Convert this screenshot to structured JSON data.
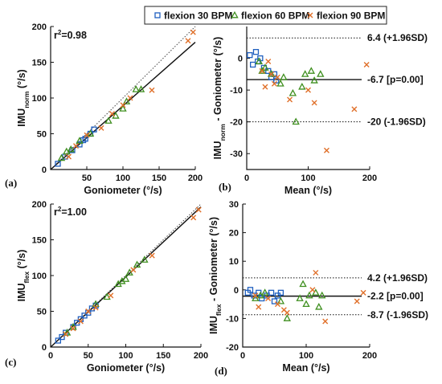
{
  "legend": {
    "items": [
      {
        "label": "flexion 30 BPM",
        "color": "#1f5fbf",
        "marker": "square"
      },
      {
        "label": "flexion 60 BPM",
        "color": "#3f8f1f",
        "marker": "triangle"
      },
      {
        "label": "flexion 90 BPM",
        "color": "#e0702a",
        "marker": "cross"
      }
    ]
  },
  "chart_data": [
    {
      "panel": "(a)",
      "type": "scatter",
      "xlabel": "Goniometer (°/s)",
      "ylabel": "IMU",
      "ylabel_sub": "norm",
      "ylabel_unit": " (°/s)",
      "xlim": [
        0,
        200
      ],
      "ylim": [
        0,
        200
      ],
      "xticks": [
        "50",
        "100",
        "150",
        "200"
      ],
      "yticks": [
        "0",
        "50",
        "100",
        "150",
        "200"
      ],
      "annotation_r2": "r",
      "annotation_r2_sup": "2",
      "annotation_r2_val": "=0.98",
      "identity_line": true,
      "fit_line": {
        "x": [
          0,
          200
        ],
        "y": [
          0,
          178
        ]
      },
      "series": [
        {
          "name": "flexion 30 BPM",
          "x": [
            10,
            20,
            30,
            40,
            45,
            48,
            55,
            60
          ],
          "y": [
            8,
            18,
            27,
            35,
            41,
            43,
            50,
            56
          ]
        },
        {
          "name": "flexion 60 BPM",
          "x": [
            15,
            22,
            28,
            40,
            55,
            80,
            90,
            100,
            105,
            118,
            125
          ],
          "y": [
            16,
            25,
            28,
            40,
            50,
            68,
            75,
            85,
            95,
            112,
            112
          ]
        },
        {
          "name": "flexion 90 BPM",
          "x": [
            25,
            35,
            50,
            70,
            85,
            100,
            110,
            140,
            190,
            197
          ],
          "y": [
            18,
            33,
            48,
            58,
            78,
            90,
            100,
            111,
            180,
            192
          ]
        }
      ]
    },
    {
      "panel": "(b)",
      "type": "scatter",
      "xlabel": "Mean (°/s)",
      "ylabel": "IMU",
      "ylabel_sub": "norm",
      "ylabel_unit": " - Goniometer (°/s)",
      "xlim": [
        0,
        200
      ],
      "ylim": [
        -35,
        10
      ],
      "xticks": [
        "0",
        "100",
        "200"
      ],
      "yticks": [
        "-30",
        "-20",
        "-10",
        "0"
      ],
      "hlines": [
        {
          "y": 6.4,
          "style": "dotted",
          "label": "6.4 (+1.96SD)"
        },
        {
          "y": -6.7,
          "style": "solid",
          "label": "-6.7 [p=0.00]"
        },
        {
          "y": -20,
          "style": "dotted",
          "label": "-20 (-1.96SD)"
        }
      ],
      "series": [
        {
          "name": "flexion 30 BPM",
          "x": [
            5,
            10,
            15,
            18,
            22,
            28,
            35,
            40,
            45,
            48
          ],
          "y": [
            1,
            -2,
            2,
            -1,
            0,
            -3,
            -4,
            -6,
            -5,
            -7
          ]
        },
        {
          "name": "flexion 60 BPM",
          "x": [
            20,
            25,
            30,
            40,
            55,
            60,
            75,
            80,
            90,
            95,
            105,
            110,
            120
          ],
          "y": [
            -1,
            -4,
            -3,
            -5,
            -8,
            -6,
            -11,
            -20,
            -9,
            -5,
            -4,
            -7,
            -5
          ]
        },
        {
          "name": "flexion 90 BPM",
          "x": [
            25,
            30,
            35,
            40,
            45,
            50,
            70,
            100,
            110,
            130,
            175,
            195
          ],
          "y": [
            -4,
            -9,
            -1,
            -5,
            -8,
            -6,
            -13,
            -10,
            -14,
            -29,
            -16,
            -2
          ]
        }
      ]
    },
    {
      "panel": "(c)",
      "type": "scatter",
      "xlabel": "Goniometer (°/s)",
      "ylabel": "IMU",
      "ylabel_sub": "flex",
      "ylabel_unit": " (°/s)",
      "xlim": [
        0,
        200
      ],
      "ylim": [
        0,
        200
      ],
      "xticks": [
        "0",
        "50",
        "100",
        "150",
        "200"
      ],
      "yticks": [
        "0",
        "50",
        "100",
        "150",
        "200"
      ],
      "annotation_r2": "r",
      "annotation_r2_sup": "2",
      "annotation_r2_val": "=1.00",
      "identity_line": true,
      "fit_line": {
        "x": [
          0,
          200
        ],
        "y": [
          0,
          196
        ]
      },
      "series": [
        {
          "name": "flexion 30 BPM",
          "x": [
            10,
            15,
            20,
            30,
            35,
            40,
            45,
            50,
            55,
            60
          ],
          "y": [
            9,
            14,
            20,
            28,
            34,
            39,
            44,
            48,
            54,
            58
          ]
        },
        {
          "name": "flexion 60 BPM",
          "x": [
            22,
            30,
            60,
            75,
            90,
            95,
            100,
            105,
            115,
            125
          ],
          "y": [
            20,
            28,
            60,
            70,
            88,
            92,
            95,
            104,
            115,
            122
          ]
        },
        {
          "name": "flexion 90 BPM",
          "x": [
            20,
            30,
            40,
            50,
            60,
            80,
            110,
            135,
            190,
            197
          ],
          "y": [
            18,
            26,
            36,
            50,
            55,
            72,
            108,
            128,
            181,
            192
          ]
        }
      ]
    },
    {
      "panel": "(d)",
      "type": "scatter",
      "xlabel": "Mean (°/s)",
      "ylabel": "IMU",
      "ylabel_sub": "flex",
      "ylabel_unit": " - Goniometer (°/s)",
      "xlim": [
        0,
        200
      ],
      "ylim": [
        -20,
        30
      ],
      "xticks": [
        "0",
        "100",
        "200"
      ],
      "yticks": [
        "-20",
        "-10",
        "0",
        "10",
        "20",
        "30"
      ],
      "hlines": [
        {
          "y": 4.2,
          "style": "dotted",
          "label": "4.2 (+1.96SD)"
        },
        {
          "y": -2.2,
          "style": "solid",
          "label": "-2.2 [p=0.00]"
        },
        {
          "y": -8.7,
          "style": "dotted",
          "label": "-8.7 (-1.96SD)"
        }
      ],
      "series": [
        {
          "name": "flexion 30 BPM",
          "x": [
            8,
            12,
            18,
            25,
            30,
            38,
            45,
            50,
            55,
            60
          ],
          "y": [
            -1,
            0,
            -2,
            -1,
            -3,
            -2,
            -1,
            -4,
            -2,
            -1
          ]
        },
        {
          "name": "flexion 60 BPM",
          "x": [
            20,
            28,
            35,
            60,
            70,
            90,
            95,
            100,
            105,
            115,
            120,
            125
          ],
          "y": [
            -3,
            -2,
            -1,
            -4,
            -10,
            -3,
            2,
            -5,
            -2,
            -1,
            -6,
            -2
          ]
        },
        {
          "name": "flexion 90 BPM",
          "x": [
            20,
            25,
            40,
            55,
            65,
            70,
            110,
            115,
            130,
            180,
            190
          ],
          "y": [
            -2,
            -6,
            -3,
            -5,
            -7,
            -8,
            0,
            6,
            -11,
            -4,
            -1
          ]
        }
      ]
    }
  ]
}
